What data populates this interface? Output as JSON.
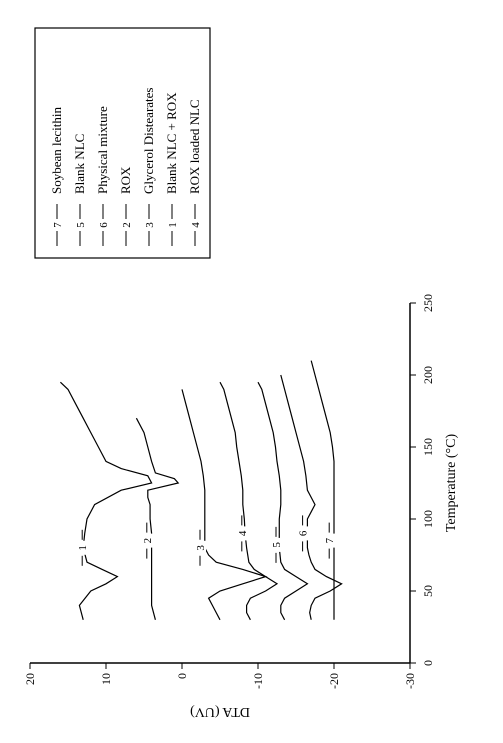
{
  "chart": {
    "type": "line",
    "xlabel": "Temperature (°C)",
    "ylabel": "DTA (UV)",
    "label_fontsize": 14,
    "tick_fontsize": 12,
    "xlim": [
      0,
      250
    ],
    "ylim": [
      -30,
      20
    ],
    "xtick_step": 50,
    "ytick_step": 10,
    "xticks": [
      0,
      50,
      100,
      150,
      200,
      250
    ],
    "yticks": [
      -30,
      -20,
      -10,
      0,
      10,
      20
    ],
    "background_color": "#ffffff",
    "axis_color": "#000000",
    "line_color": "#000000",
    "line_width": 1.2,
    "legend": {
      "border_color": "#000000",
      "items": [
        {
          "marker": "7",
          "label": "Soybean lecithin"
        },
        {
          "marker": "5",
          "label": "Blank NLC"
        },
        {
          "marker": "6",
          "label": "Physical mixture"
        },
        {
          "marker": "2",
          "label": "ROX"
        },
        {
          "marker": "3",
          "label": "Glycerol Distearates"
        },
        {
          "marker": "1",
          "label": "Blank NLC + ROX"
        },
        {
          "marker": "4",
          "label": "ROX loaded NLC"
        }
      ]
    },
    "series": [
      {
        "id": "1",
        "label_x": 80,
        "label_y": 13,
        "data": [
          [
            30,
            13
          ],
          [
            40,
            13.5
          ],
          [
            50,
            12
          ],
          [
            55,
            10
          ],
          [
            60,
            8.5
          ],
          [
            65,
            10.5
          ],
          [
            70,
            12.5
          ],
          [
            80,
            13
          ],
          [
            90,
            12.8
          ],
          [
            100,
            12.5
          ],
          [
            110,
            11.5
          ],
          [
            120,
            8
          ],
          [
            125,
            4
          ],
          [
            130,
            4.5
          ],
          [
            135,
            8
          ],
          [
            140,
            10
          ],
          [
            150,
            11
          ],
          [
            160,
            12
          ],
          [
            170,
            13
          ],
          [
            180,
            14
          ],
          [
            190,
            15
          ],
          [
            195,
            16
          ]
        ]
      },
      {
        "id": "2",
        "label_x": 85,
        "label_y": 4.5,
        "data": [
          [
            30,
            3.5
          ],
          [
            40,
            4
          ],
          [
            50,
            4
          ],
          [
            60,
            4
          ],
          [
            70,
            4
          ],
          [
            80,
            4
          ],
          [
            90,
            4
          ],
          [
            100,
            4.2
          ],
          [
            110,
            4.2
          ],
          [
            115,
            4.5
          ],
          [
            120,
            4.5
          ],
          [
            125,
            0.5
          ],
          [
            128,
            1
          ],
          [
            132,
            3.5
          ],
          [
            140,
            4
          ],
          [
            150,
            4.5
          ],
          [
            160,
            5
          ],
          [
            170,
            6
          ]
        ]
      },
      {
        "id": "3",
        "label_x": 80,
        "label_y": -2.5,
        "data": [
          [
            30,
            -5
          ],
          [
            35,
            -4.5
          ],
          [
            40,
            -4
          ],
          [
            45,
            -3.5
          ],
          [
            50,
            -5
          ],
          [
            55,
            -8
          ],
          [
            60,
            -11
          ],
          [
            65,
            -8
          ],
          [
            70,
            -4.5
          ],
          [
            75,
            -3.5
          ],
          [
            80,
            -3
          ],
          [
            90,
            -3
          ],
          [
            100,
            -3
          ],
          [
            110,
            -3
          ],
          [
            120,
            -3
          ],
          [
            130,
            -2.8
          ],
          [
            140,
            -2.5
          ],
          [
            150,
            -2
          ],
          [
            160,
            -1.5
          ],
          [
            170,
            -1
          ],
          [
            180,
            -0.5
          ],
          [
            190,
            0
          ]
        ]
      },
      {
        "id": "4",
        "label_x": 90,
        "label_y": -8,
        "data": [
          [
            30,
            -9
          ],
          [
            35,
            -8.5
          ],
          [
            40,
            -8.5
          ],
          [
            45,
            -9
          ],
          [
            50,
            -11
          ],
          [
            55,
            -12.5
          ],
          [
            60,
            -11
          ],
          [
            65,
            -9.5
          ],
          [
            70,
            -8.8
          ],
          [
            80,
            -8.5
          ],
          [
            90,
            -8.3
          ],
          [
            100,
            -8.2
          ],
          [
            110,
            -8
          ],
          [
            120,
            -8
          ],
          [
            130,
            -7.8
          ],
          [
            140,
            -7.5
          ],
          [
            150,
            -7.2
          ],
          [
            160,
            -7
          ],
          [
            170,
            -6.5
          ],
          [
            180,
            -6
          ],
          [
            190,
            -5.5
          ],
          [
            195,
            -5
          ]
        ]
      },
      {
        "id": "5",
        "label_x": 82,
        "label_y": -12.5,
        "data": [
          [
            30,
            -13.5
          ],
          [
            35,
            -13
          ],
          [
            40,
            -13
          ],
          [
            45,
            -13.5
          ],
          [
            50,
            -15
          ],
          [
            55,
            -16.5
          ],
          [
            60,
            -15
          ],
          [
            65,
            -13.5
          ],
          [
            70,
            -13
          ],
          [
            80,
            -12.8
          ],
          [
            90,
            -12.8
          ],
          [
            100,
            -12.8
          ],
          [
            110,
            -13
          ],
          [
            120,
            -13
          ],
          [
            130,
            -12.8
          ],
          [
            140,
            -12.5
          ],
          [
            150,
            -12.3
          ],
          [
            160,
            -12
          ],
          [
            170,
            -11.5
          ],
          [
            180,
            -11
          ],
          [
            190,
            -10.5
          ],
          [
            195,
            -10
          ]
        ]
      },
      {
        "id": "6",
        "label_x": 90,
        "label_y": -16,
        "data": [
          [
            30,
            -17
          ],
          [
            35,
            -16.8
          ],
          [
            40,
            -17
          ],
          [
            45,
            -17.5
          ],
          [
            50,
            -19.5
          ],
          [
            55,
            -21
          ],
          [
            60,
            -19
          ],
          [
            65,
            -17.5
          ],
          [
            70,
            -17
          ],
          [
            75,
            -16.7
          ],
          [
            80,
            -16.5
          ],
          [
            90,
            -16.5
          ],
          [
            100,
            -16.5
          ],
          [
            105,
            -17
          ],
          [
            110,
            -17.5
          ],
          [
            115,
            -17
          ],
          [
            120,
            -16.5
          ],
          [
            130,
            -16.3
          ],
          [
            140,
            -16
          ],
          [
            150,
            -15.5
          ],
          [
            160,
            -15
          ],
          [
            170,
            -14.5
          ],
          [
            180,
            -14
          ],
          [
            190,
            -13.5
          ],
          [
            200,
            -13
          ]
        ]
      },
      {
        "id": "7",
        "label_x": 85,
        "label_y": -19.5,
        "data": [
          [
            30,
            -20
          ],
          [
            40,
            -20
          ],
          [
            50,
            -20
          ],
          [
            60,
            -20
          ],
          [
            70,
            -20
          ],
          [
            80,
            -20
          ],
          [
            90,
            -20
          ],
          [
            100,
            -20
          ],
          [
            110,
            -20
          ],
          [
            120,
            -20
          ],
          [
            130,
            -20
          ],
          [
            140,
            -20
          ],
          [
            150,
            -19.8
          ],
          [
            160,
            -19.5
          ],
          [
            170,
            -19
          ],
          [
            180,
            -18.5
          ],
          [
            190,
            -18
          ],
          [
            200,
            -17.5
          ],
          [
            210,
            -17
          ]
        ]
      }
    ]
  }
}
